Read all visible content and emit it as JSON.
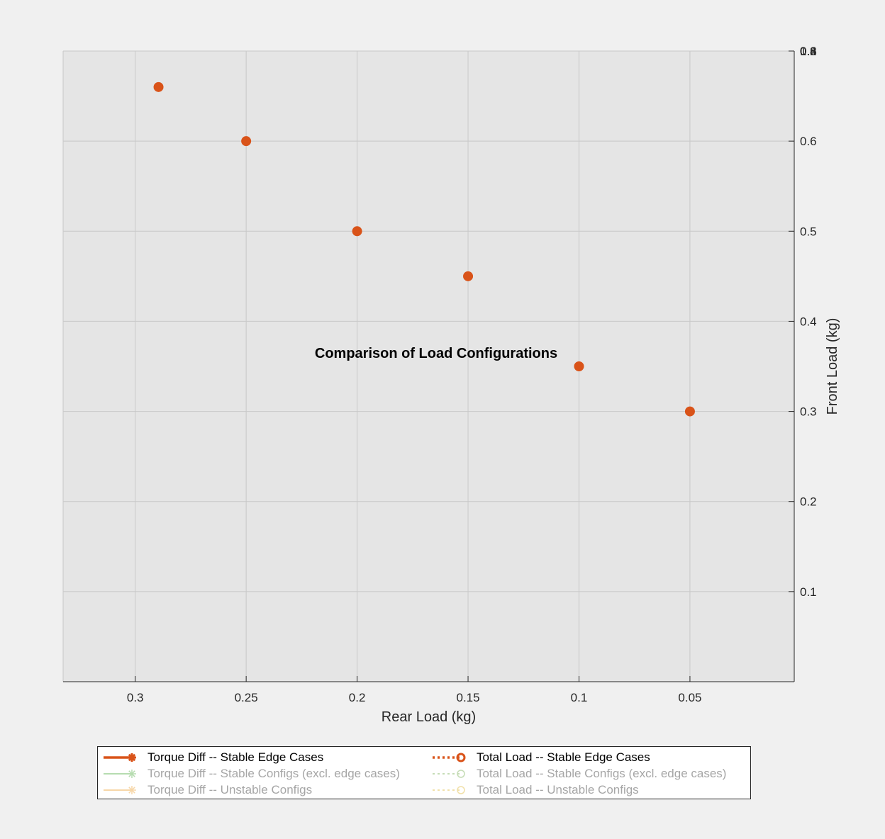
{
  "chart_data": {
    "type": "scatter",
    "title": "Comparison of Load Configurations",
    "xlabel": "Rear Load (kg)",
    "ylabel": "Front Load (kg)",
    "x_reversed": true,
    "xlim": [
      0.3325,
      0.003
    ],
    "ylim": [
      0,
      0.7
    ],
    "x_ticks": [
      0.3,
      0.25,
      0.2,
      0.15,
      0.1,
      0.05
    ],
    "x_tick_labels": [
      "0.3",
      "0.25",
      "0.2",
      "0.15",
      "0.1",
      "0.05"
    ],
    "y_ticks": [
      0.1,
      0.2,
      0.3,
      0.4,
      0.5,
      0.6
    ],
    "y_tick_labels": [
      "0.1",
      "0.2",
      "0.3",
      "0.4",
      "0.5",
      "0.6"
    ],
    "y_axis_location": "right",
    "overlapping_top_tick_labels": [
      "1",
      "0.8",
      "0.6",
      "0.4",
      "0.2",
      "0"
    ],
    "grid": true,
    "series": [
      {
        "name": "Total Load -- Stable Edge Cases",
        "color": "#d95319",
        "marker": "filled-circle",
        "points": [
          {
            "x": 0.2895,
            "y": 0.66
          },
          {
            "x": 0.25,
            "y": 0.6
          },
          {
            "x": 0.2,
            "y": 0.5
          },
          {
            "x": 0.15,
            "y": 0.45
          },
          {
            "x": 0.1,
            "y": 0.35
          },
          {
            "x": 0.05,
            "y": 0.3
          }
        ]
      }
    ],
    "legend": {
      "placement": "bottom-outside",
      "columns": 2,
      "entries": [
        {
          "label": "Torque Diff -- Stable Edge Cases",
          "color": "#d95319",
          "line": "solid",
          "marker": "asterisk",
          "faded": false
        },
        {
          "label": "Total Load -- Stable Edge Cases",
          "color": "#d95319",
          "line": "dotted",
          "marker": "circle",
          "faded": false
        },
        {
          "label": "Torque Diff -- Stable Configs (excl. edge cases)",
          "color": "#b6dcb0",
          "line": "solid",
          "marker": "asterisk",
          "faded": true
        },
        {
          "label": "Total Load -- Stable Configs (excl. edge cases)",
          "color": "#c5dcb5",
          "line": "dotted",
          "marker": "circle",
          "faded": true
        },
        {
          "label": "Torque Diff -- Unstable Configs",
          "color": "#f7d7a8",
          "line": "solid",
          "marker": "asterisk",
          "faded": true
        },
        {
          "label": "Total Load -- Unstable Configs",
          "color": "#f1e0a8",
          "line": "dotted",
          "marker": "circle",
          "faded": true
        }
      ]
    },
    "colors": {
      "figure_bg": "#f0f0f0",
      "axes_bg": "#e5e5e5",
      "grid": "#c8c8c8",
      "axis": "#262626",
      "faded_text": "#a6a6a6"
    }
  }
}
